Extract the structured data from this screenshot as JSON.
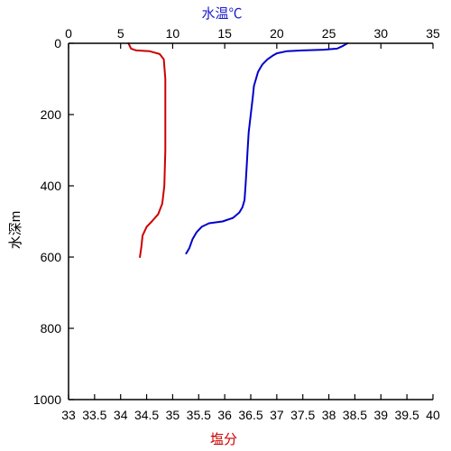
{
  "chart_data": {
    "type": "line",
    "title": "",
    "top_axis": {
      "label": "水温℃",
      "range": [
        0,
        35
      ],
      "ticks": [
        0,
        5,
        10,
        15,
        20,
        25,
        30,
        35
      ],
      "color": "#1a1acc"
    },
    "bottom_axis": {
      "label": "塩分",
      "range": [
        33,
        40
      ],
      "ticks": [
        "33",
        "33.5",
        "34",
        "34.5",
        "35",
        "35.5",
        "36",
        "36.5",
        "37",
        "37.5",
        "38",
        "38.5",
        "39",
        "39.5",
        "40"
      ],
      "color": "#cc0000"
    },
    "y_axis": {
      "label": "水深m",
      "range": [
        0,
        1000
      ],
      "inverted": true,
      "ticks": [
        0,
        200,
        400,
        600,
        800,
        1000
      ]
    },
    "grid": false,
    "series": [
      {
        "key": "temperature",
        "axis": "top",
        "color": "#0000cc",
        "points": [
          [
            26.8,
            0
          ],
          [
            26.3,
            8
          ],
          [
            25.8,
            15
          ],
          [
            24.5,
            18
          ],
          [
            22.5,
            20
          ],
          [
            21.0,
            22
          ],
          [
            20.0,
            28
          ],
          [
            19.6,
            35
          ],
          [
            19.1,
            45
          ],
          [
            18.6,
            60
          ],
          [
            18.2,
            80
          ],
          [
            18.0,
            100
          ],
          [
            17.8,
            120
          ],
          [
            17.7,
            150
          ],
          [
            17.5,
            200
          ],
          [
            17.3,
            250
          ],
          [
            17.2,
            300
          ],
          [
            17.1,
            350
          ],
          [
            17.0,
            400
          ],
          [
            16.9,
            440
          ],
          [
            16.7,
            460
          ],
          [
            16.4,
            475
          ],
          [
            15.8,
            490
          ],
          [
            14.8,
            500
          ],
          [
            13.5,
            505
          ],
          [
            12.8,
            515
          ],
          [
            12.3,
            530
          ],
          [
            11.9,
            550
          ],
          [
            11.6,
            575
          ],
          [
            11.3,
            590
          ]
        ]
      },
      {
        "key": "salinity",
        "axis": "bottom",
        "color": "#cc0000",
        "points": [
          [
            34.15,
            0
          ],
          [
            34.2,
            15
          ],
          [
            34.3,
            20
          ],
          [
            34.55,
            22
          ],
          [
            34.75,
            30
          ],
          [
            34.83,
            45
          ],
          [
            34.86,
            100
          ],
          [
            34.86,
            200
          ],
          [
            34.86,
            300
          ],
          [
            34.84,
            400
          ],
          [
            34.8,
            450
          ],
          [
            34.72,
            480
          ],
          [
            34.6,
            500
          ],
          [
            34.5,
            515
          ],
          [
            34.42,
            540
          ],
          [
            34.4,
            570
          ],
          [
            34.37,
            600
          ]
        ]
      }
    ]
  }
}
